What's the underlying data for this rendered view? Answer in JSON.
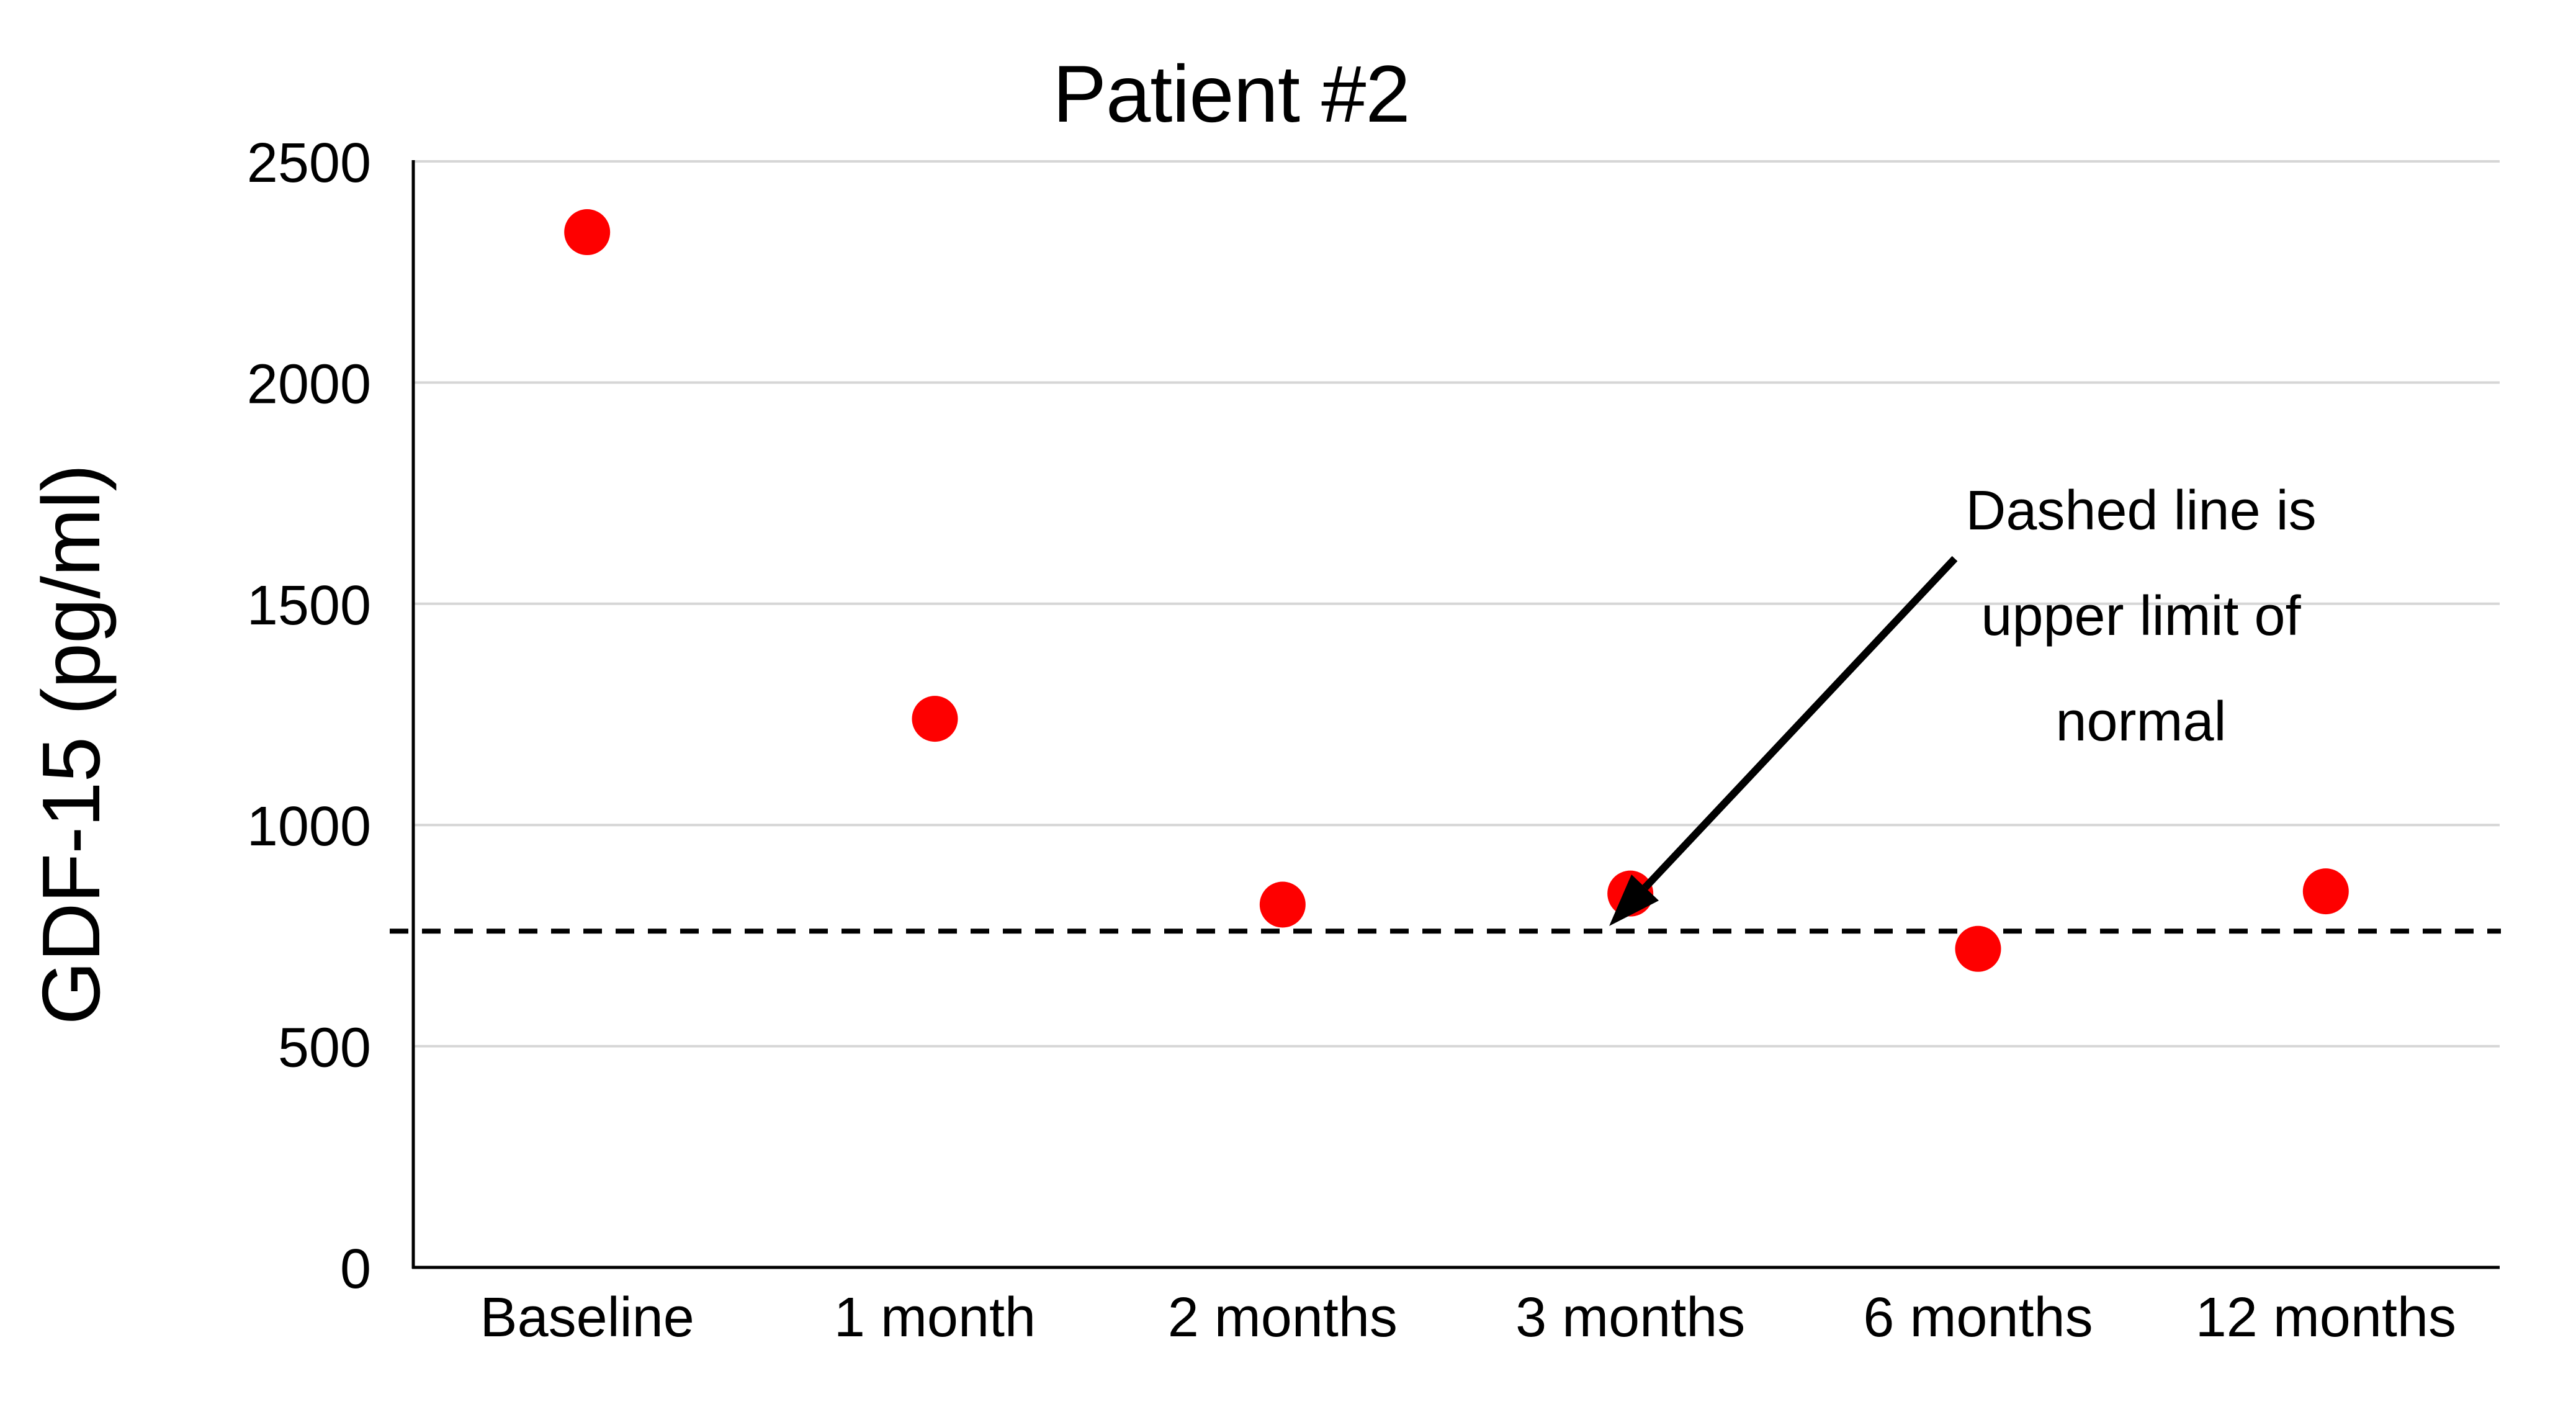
{
  "title": "Patient #2",
  "y_axis": {
    "label": "GDF-15 (pg/ml)"
  },
  "annotation": {
    "lines": [
      "Dashed line is",
      "upper limit of",
      "normal"
    ]
  },
  "colors": {
    "marker": "#fe0000",
    "gridline": "#d6d6d6",
    "axis": "#000000",
    "dashed_line": "#000000",
    "text": "#000000"
  },
  "chart_data": {
    "type": "scatter",
    "title": "Patient #2",
    "categories": [
      "Baseline",
      "1 month",
      "2 months",
      "3 months",
      "6 months",
      "12 months"
    ],
    "values": [
      2340,
      1240,
      820,
      845,
      720,
      850
    ],
    "series_name": "GDF-15",
    "xlabel": "",
    "ylabel": "GDF-15 (pg/ml)",
    "ylim": [
      0,
      2500
    ],
    "ytick_step": 500,
    "y_tick_values": [
      2500,
      2000,
      1500,
      1000,
      500,
      0
    ],
    "y_tick_labels": [
      "2500",
      "2000",
      "1500",
      "1000",
      "500",
      "0"
    ],
    "grid": "horizontal-only",
    "legend": "none",
    "marker": "circle-red",
    "reference_line": {
      "value": 760,
      "style": "dashed",
      "meaning": "upper limit of normal"
    },
    "annotation_text": "Dashed line is upper limit of normal"
  }
}
